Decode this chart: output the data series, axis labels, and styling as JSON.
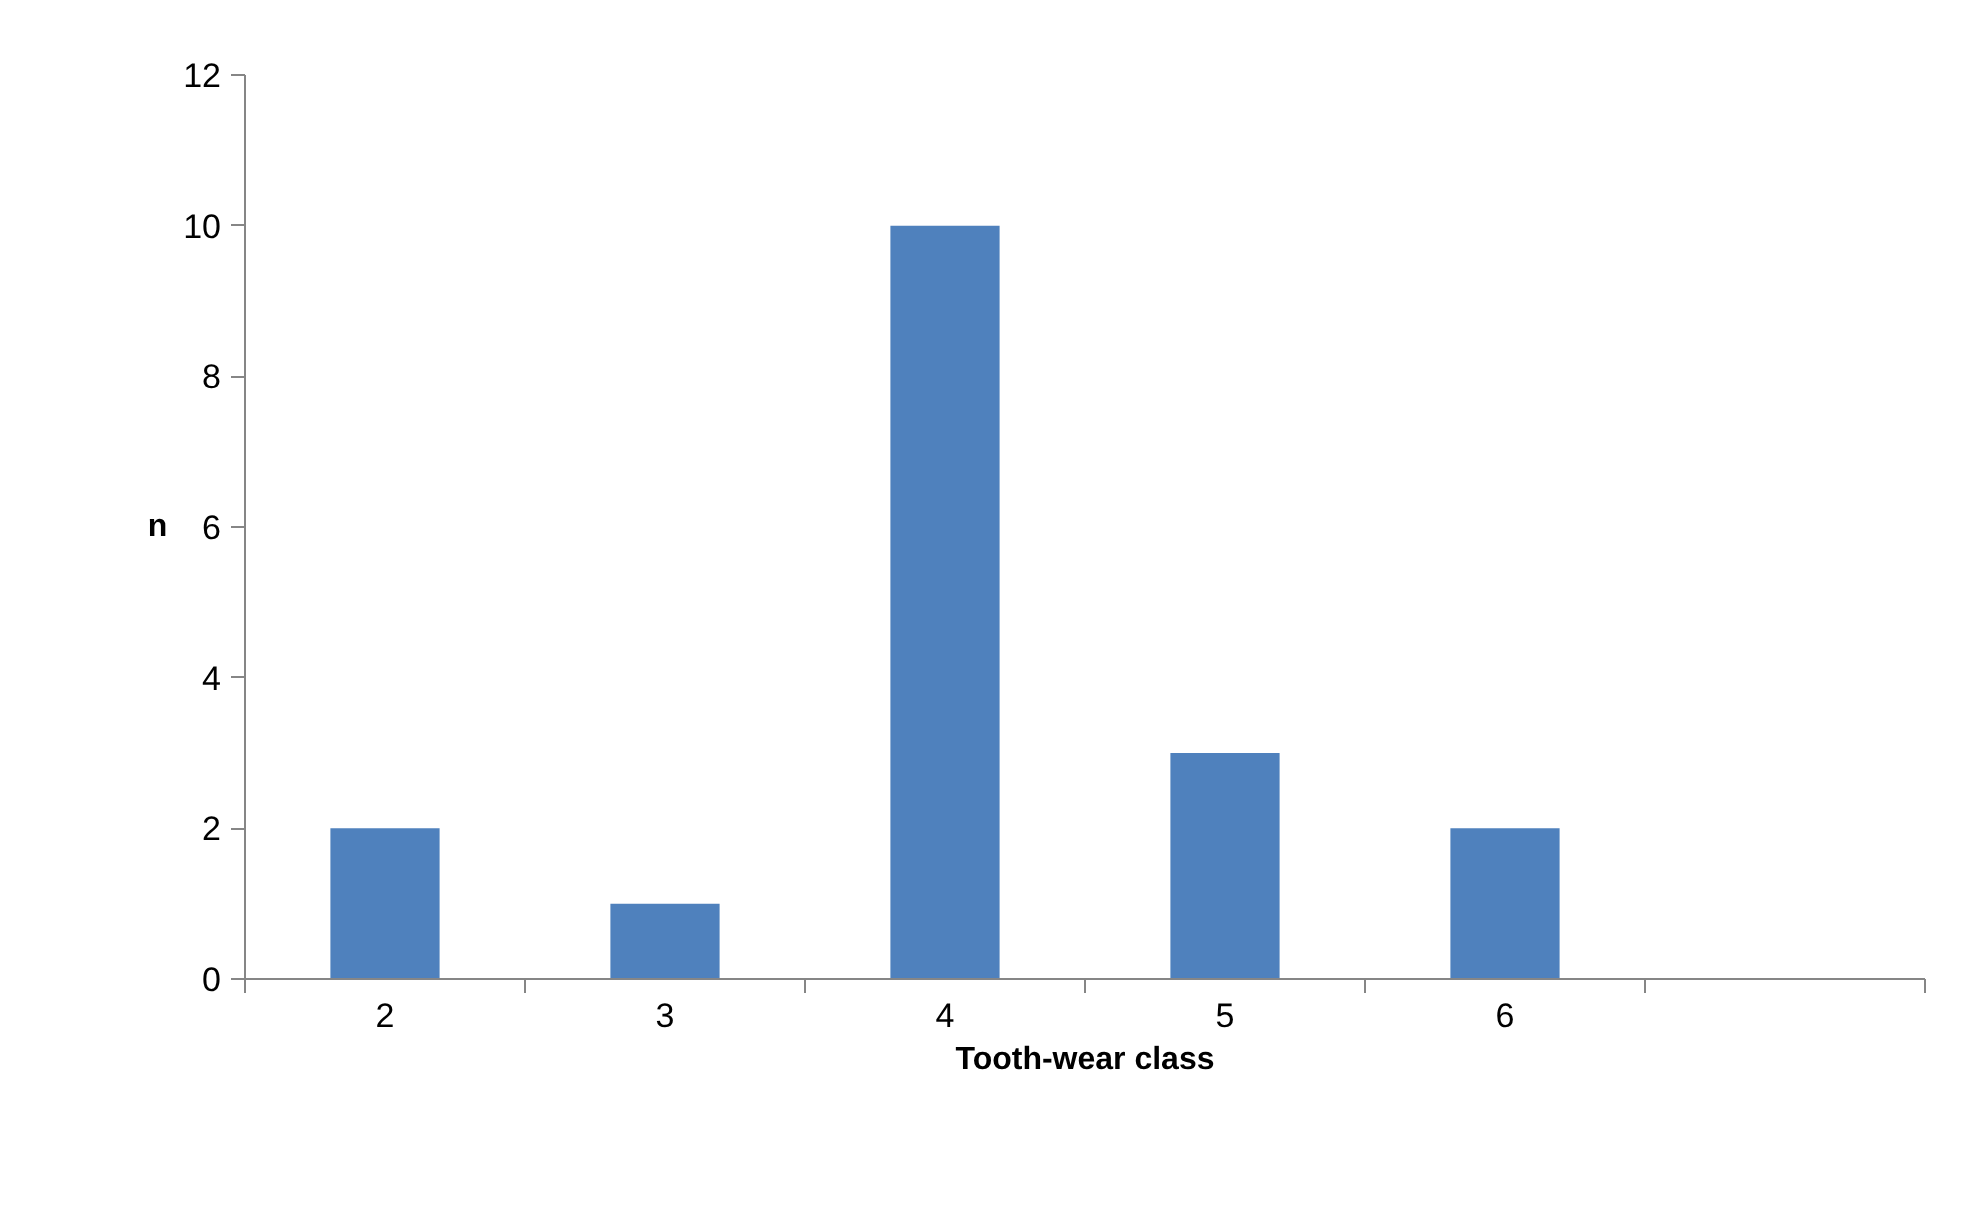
{
  "chart_data": {
    "type": "bar",
    "xlabel": "Tooth-wear class",
    "ylabel": "n",
    "categories": [
      "2",
      "3",
      "4",
      "5",
      "6",
      null
    ],
    "values": [
      2,
      1,
      10,
      3,
      2,
      null
    ],
    "color": "#4f81bd",
    "ylim": [
      0,
      12
    ],
    "yticks": [
      0,
      2,
      4,
      6,
      8,
      10,
      12
    ],
    "grid": false
  }
}
